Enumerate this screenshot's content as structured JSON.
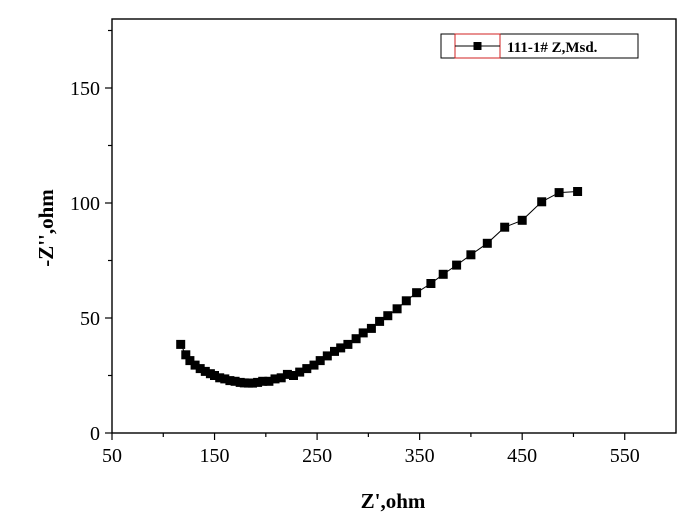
{
  "chart_data": {
    "type": "scatter",
    "xlabel": "Z',ohm",
    "ylabel": "-Z'',ohm",
    "xlim": [
      50,
      600
    ],
    "ylim": [
      0,
      180
    ],
    "xticks": [
      50,
      150,
      250,
      350,
      450,
      550
    ],
    "yticks": [
      0,
      50,
      100,
      150
    ],
    "grid": false,
    "legend_position": "top-right",
    "series": [
      {
        "name": "111-1#  Z,Msd.",
        "marker": "square",
        "line": "solid",
        "color": "#000000",
        "points": [
          [
            117,
            38.5
          ],
          [
            122,
            34
          ],
          [
            126,
            31.5
          ],
          [
            131,
            29.5
          ],
          [
            136,
            28
          ],
          [
            141,
            26.8
          ],
          [
            146,
            25.8
          ],
          [
            150,
            25
          ],
          [
            155,
            24
          ],
          [
            160,
            23.5
          ],
          [
            165,
            22.8
          ],
          [
            170,
            22.5
          ],
          [
            175,
            22
          ],
          [
            179,
            21.8
          ],
          [
            183,
            21.7
          ],
          [
            187,
            21.7
          ],
          [
            192,
            22
          ],
          [
            197,
            22.5
          ],
          [
            203,
            22.5
          ],
          [
            209,
            23.5
          ],
          [
            215,
            24
          ],
          [
            221,
            25.5
          ],
          [
            227,
            25
          ],
          [
            233,
            26.5
          ],
          [
            240,
            28
          ],
          [
            247,
            29.5
          ],
          [
            253,
            31.5
          ],
          [
            260,
            33.5
          ],
          [
            267,
            35.5
          ],
          [
            273,
            37
          ],
          [
            280,
            38.5
          ],
          [
            288,
            41
          ],
          [
            295,
            43.5
          ],
          [
            303,
            45.5
          ],
          [
            311,
            48.5
          ],
          [
            319,
            51
          ],
          [
            328,
            54
          ],
          [
            337,
            57.5
          ],
          [
            347,
            61
          ],
          [
            361,
            65
          ],
          [
            373,
            69
          ],
          [
            386,
            73
          ],
          [
            400,
            77.5
          ],
          [
            416,
            82.5
          ],
          [
            433,
            89.5
          ],
          [
            450,
            92.5
          ],
          [
            469,
            100.5
          ],
          [
            486,
            104.5
          ],
          [
            504,
            105
          ]
        ]
      }
    ]
  },
  "legend": {
    "label": "111-1#  Z,Msd."
  }
}
